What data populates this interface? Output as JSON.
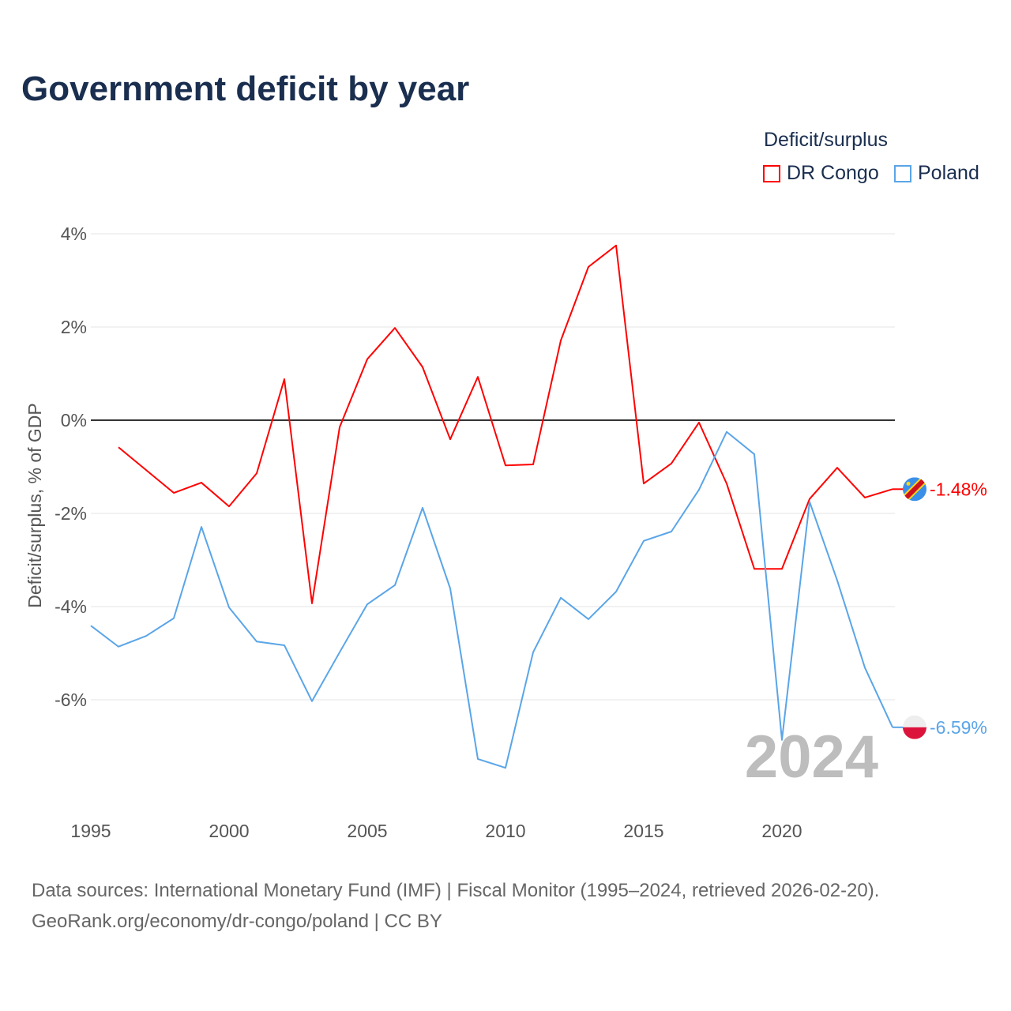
{
  "title": "Government deficit by year",
  "legend": {
    "title": "Deficit/surplus",
    "items": [
      {
        "label": "DR Congo",
        "color": "#ff0000"
      },
      {
        "label": "Poland",
        "color": "#5aa5e8"
      }
    ]
  },
  "source": {
    "line1": "Data sources: International Monetary Fund (IMF) | Fiscal Monitor (1995–2024, retrieved 2026-02-20).",
    "line2": "GeoRank.org/economy/dr-congo/poland | CC BY"
  },
  "chart_data": {
    "type": "line",
    "title": "Government deficit by year",
    "xlabel": "",
    "ylabel": "Deficit/surplus, % of GDP",
    "xlim": [
      1995,
      2024
    ],
    "ylim": [
      -8.5,
      4
    ],
    "x_ticks": [
      1995,
      2000,
      2005,
      2010,
      2015,
      2020
    ],
    "x_tick_labels": [
      "1995",
      "2000",
      "2005",
      "2010",
      "2015",
      "2020"
    ],
    "y_ticks": [
      4,
      2,
      0,
      -2,
      -4,
      -6
    ],
    "y_tick_labels": [
      "4%",
      "2%",
      "0%",
      "-2%",
      "-4%",
      "-6%"
    ],
    "year_watermark": "2024",
    "series": [
      {
        "name": "DR Congo",
        "color": "#ff0000",
        "end_label": "-1.48%",
        "flag": "dr-congo-flag-icon",
        "x": [
          1996,
          1997,
          1998,
          1999,
          2000,
          2001,
          2002,
          2003,
          2004,
          2005,
          2006,
          2007,
          2008,
          2009,
          2010,
          2011,
          2012,
          2013,
          2014,
          2015,
          2016,
          2017,
          2018,
          2019,
          2020,
          2021,
          2022,
          2023,
          2024
        ],
        "values": [
          -0.58,
          -1.07,
          -1.56,
          -1.34,
          -1.85,
          -1.14,
          0.88,
          -3.93,
          -0.15,
          1.31,
          1.98,
          1.14,
          -0.41,
          0.93,
          -0.97,
          -0.95,
          1.71,
          3.29,
          3.75,
          -1.36,
          -0.93,
          -0.05,
          -1.36,
          -3.19,
          -3.19,
          -1.69,
          -1.02,
          -1.66,
          -1.48
        ]
      },
      {
        "name": "Poland",
        "color": "#5aa5e8",
        "end_label": "-6.59%",
        "flag": "poland-flag-icon",
        "x": [
          1995,
          1996,
          1997,
          1998,
          1999,
          2000,
          2001,
          2002,
          2003,
          2004,
          2005,
          2006,
          2007,
          2008,
          2009,
          2010,
          2011,
          2012,
          2013,
          2014,
          2015,
          2016,
          2017,
          2018,
          2019,
          2020,
          2021,
          2022,
          2023,
          2024
        ],
        "values": [
          -4.41,
          -4.86,
          -4.63,
          -4.25,
          -2.29,
          -4.02,
          -4.75,
          -4.83,
          -6.03,
          -4.98,
          -3.95,
          -3.54,
          -1.88,
          -3.61,
          -7.27,
          -7.46,
          -4.98,
          -3.81,
          -4.27,
          -3.68,
          -2.59,
          -2.39,
          -1.49,
          -0.25,
          -0.73,
          -6.86,
          -1.75,
          -3.44,
          -5.31,
          -6.59
        ]
      }
    ]
  }
}
